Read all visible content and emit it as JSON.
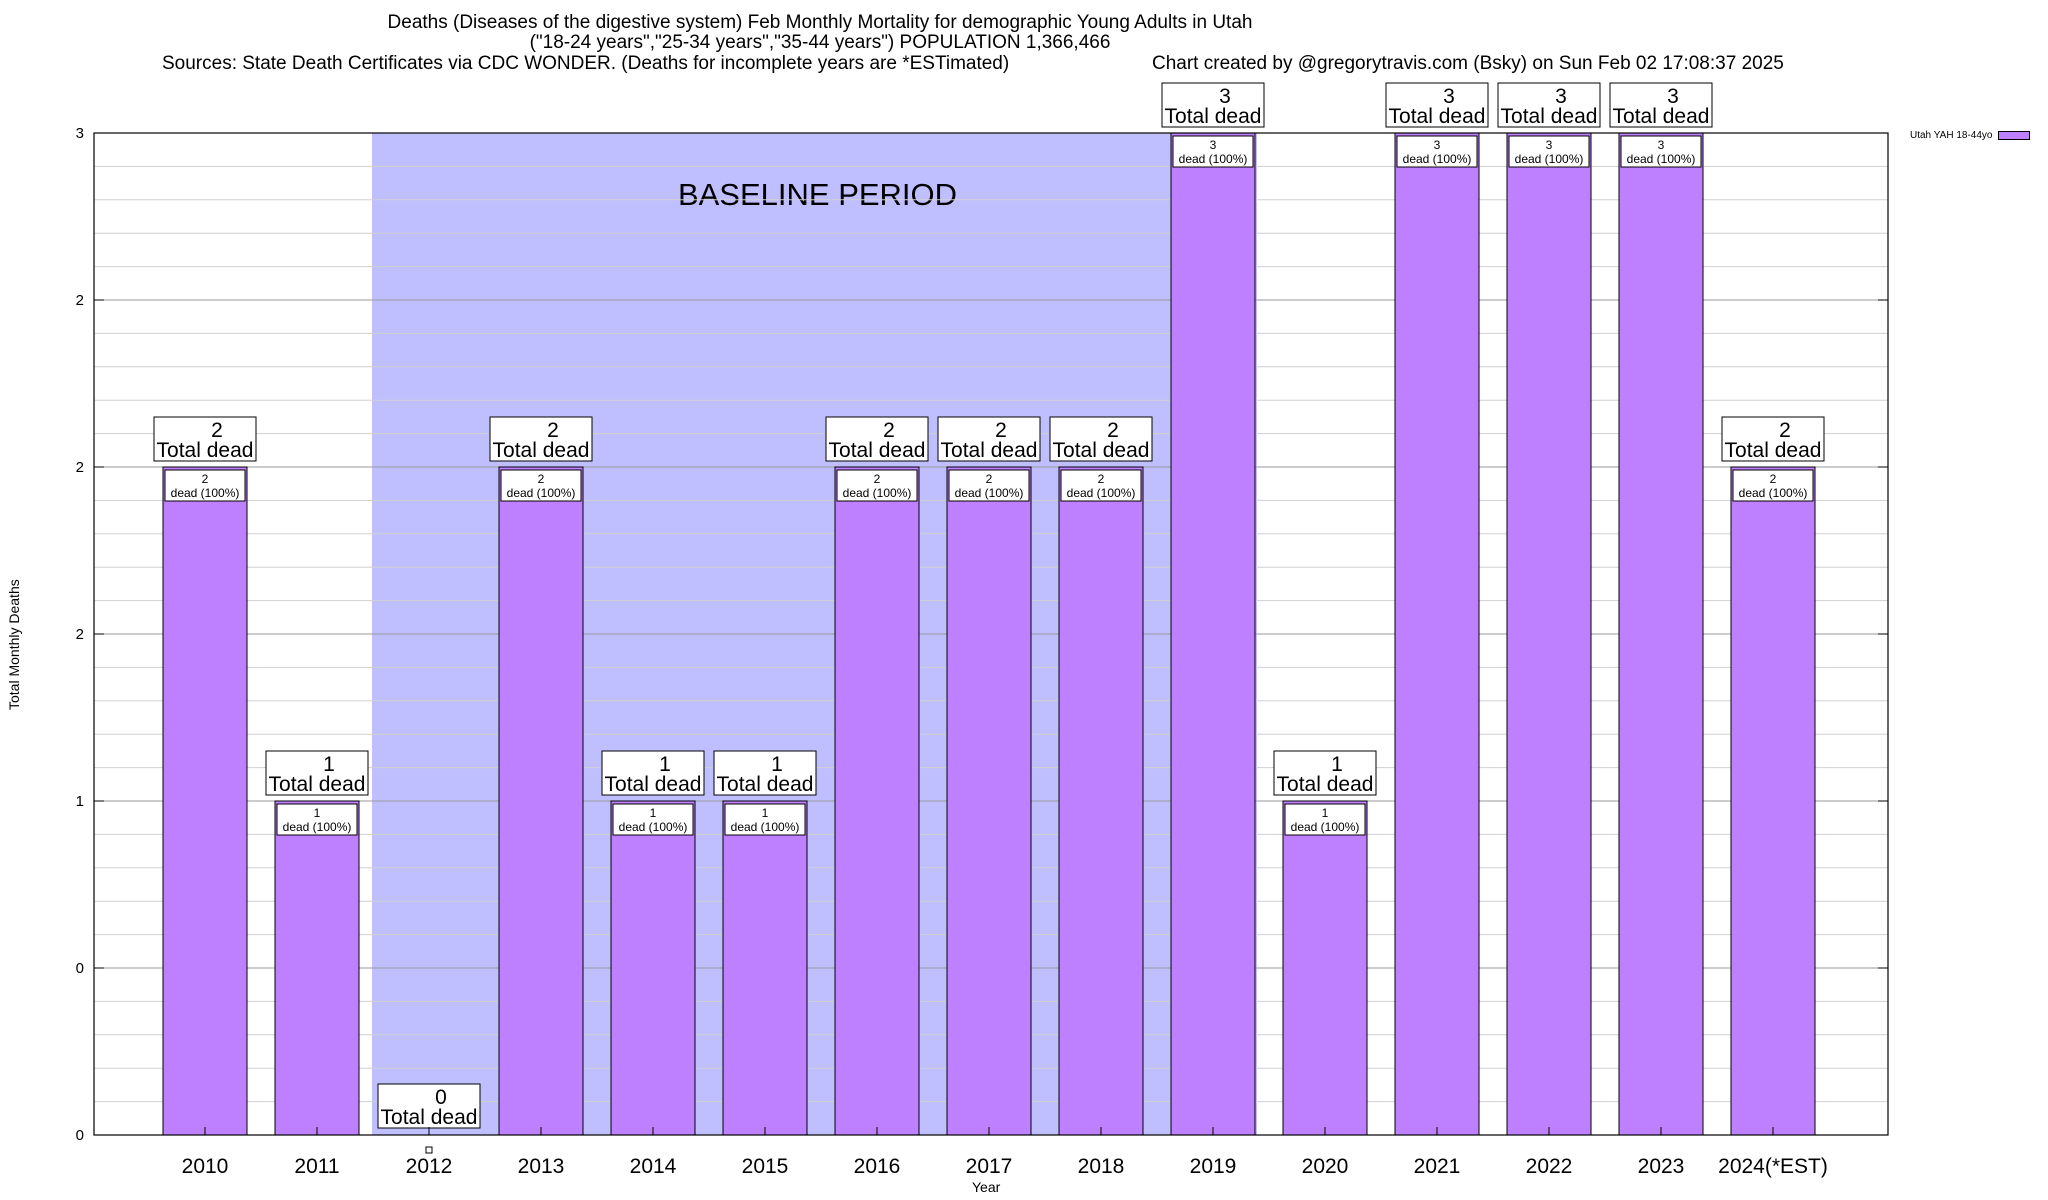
{
  "chart_data": {
    "type": "bar",
    "title_lines": [
      "Deaths (Diseases of the digestive system) Feb Monthly Mortality for demographic Young Adults in Utah",
      "(\"18-24 years\",\"25-34 years\",\"35-44 years\") POPULATION 1,366,466"
    ],
    "sources": "Sources: State Death Certificates via CDC WONDER. (Deaths for incomplete years are *ESTimated)",
    "credit": "Chart created by @gregorytravis.com (Bsky) on Sun Feb 02 17:08:37 2025",
    "xlabel": "Year",
    "ylabel": "Total Monthly Deaths",
    "categories": [
      "2010",
      "2011",
      "2012",
      "2013",
      "2014",
      "2015",
      "2016",
      "2017",
      "2018",
      "2019",
      "2020",
      "2021",
      "2022",
      "2023",
      "2024(*EST)"
    ],
    "values": [
      2,
      1,
      0,
      2,
      1,
      1,
      2,
      2,
      2,
      3,
      1,
      3,
      3,
      3,
      2
    ],
    "ylim": [
      0,
      3
    ],
    "ytick_labels": [
      "0",
      "0",
      "1",
      "2",
      "2",
      "2",
      "3"
    ],
    "total_label_suffix": "Total dead",
    "inner_label_suffix": "dead (100%)",
    "baseline_label": "BASELINE PERIOD",
    "baseline_span": [
      "2012",
      "2019"
    ],
    "series": [
      {
        "name": "Utah YAH 18-44yo",
        "values": [
          2,
          1,
          0,
          2,
          1,
          1,
          2,
          2,
          2,
          3,
          1,
          3,
          3,
          3,
          2
        ]
      }
    ],
    "grid": true,
    "legend_position": "top-right",
    "colors": {
      "bar": "#bf80ff",
      "baseline": "#bfbfff"
    }
  }
}
